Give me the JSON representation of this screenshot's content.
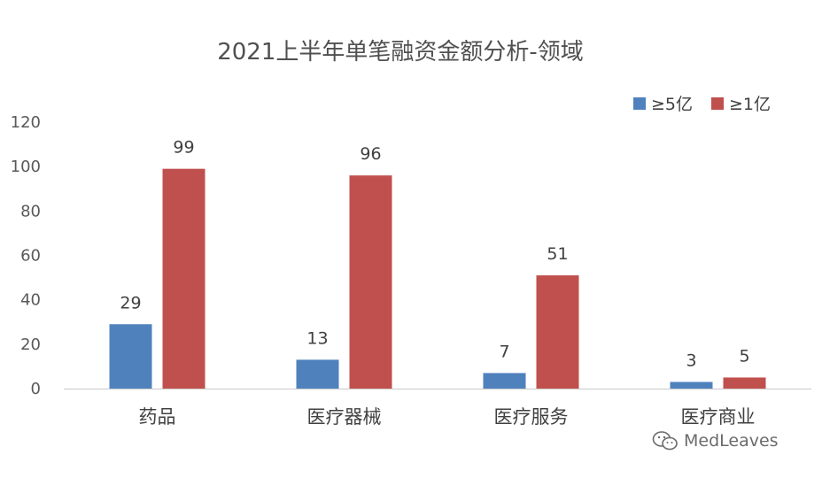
{
  "chart_data": {
    "type": "bar",
    "title": "2021上半年单笔融资金额分析-领域",
    "categories": [
      "药品",
      "医疗器械",
      "医疗服务",
      "医疗商业"
    ],
    "series": [
      {
        "name": "≥5亿",
        "values": [
          29,
          13,
          7,
          3
        ],
        "color": "#4f81bd"
      },
      {
        "name": "≥1亿",
        "values": [
          99,
          96,
          51,
          5
        ],
        "color": "#c0504d"
      }
    ],
    "yticks": [
      0,
      20,
      40,
      60,
      80,
      100,
      120
    ],
    "ylim": [
      0,
      120
    ],
    "grid": false,
    "legend": "top-right",
    "data_labels": true
  },
  "watermark": {
    "text": "MedLeaves",
    "icon": "wechat-icon"
  }
}
